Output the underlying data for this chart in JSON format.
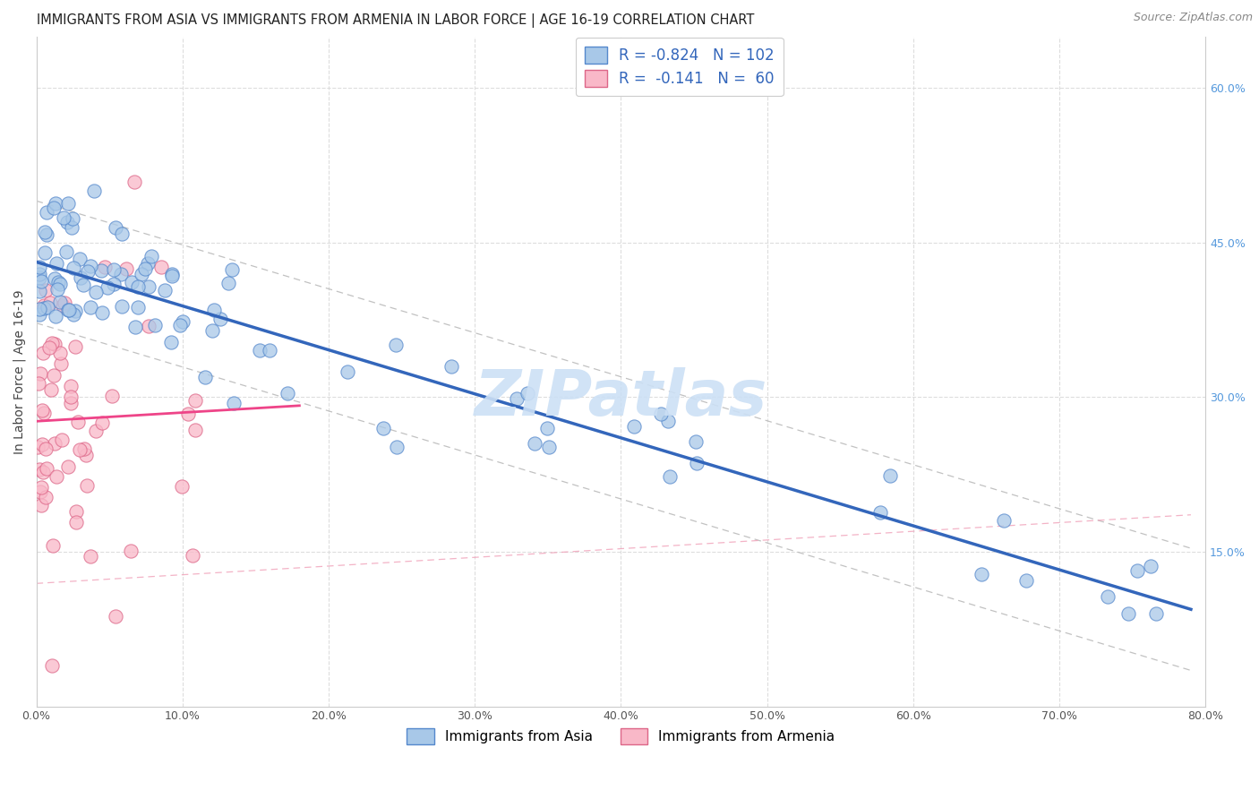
{
  "title": "IMMIGRANTS FROM ASIA VS IMMIGRANTS FROM ARMENIA IN LABOR FORCE | AGE 16-19 CORRELATION CHART",
  "source": "Source: ZipAtlas.com",
  "ylabel": "In Labor Force | Age 16-19",
  "watermark": "ZIPatlas",
  "legend_label_asia": "Immigrants from Asia",
  "legend_label_armenia": "Immigrants from Armenia",
  "color_asia": "#a8c8e8",
  "color_asia_edge": "#5588cc",
  "color_armenia": "#f9b8c8",
  "color_armenia_edge": "#dd6688",
  "color_asia_line": "#3366bb",
  "color_armenia_line": "#ee4488",
  "color_dash": "#bbbbbb",
  "color_dash_armenia": "#f0a0b8",
  "color_r_blue": "#3366bb",
  "color_n_blue": "#3366bb",
  "color_tick_right": "#5599dd",
  "grid_color": "#dddddd",
  "background_color": "#ffffff",
  "title_fontsize": 10.5,
  "watermark_fontsize": 52,
  "watermark_color": "#cce0f5",
  "xmin": 0.0,
  "xmax": 0.8,
  "ymin": 0.0,
  "ymax": 0.65,
  "xticks": [
    0.0,
    0.1,
    0.2,
    0.3,
    0.4,
    0.5,
    0.6,
    0.7,
    0.8
  ],
  "xticklabels": [
    "0.0%",
    "10.0%",
    "20.0%",
    "30.0%",
    "40.0%",
    "50.0%",
    "60.0%",
    "70.0%",
    "80.0%"
  ],
  "yticks_right": [
    0.15,
    0.3,
    0.45,
    0.6
  ],
  "yticklabels_right": [
    "15.0%",
    "30.0%",
    "45.0%",
    "60.0%"
  ]
}
